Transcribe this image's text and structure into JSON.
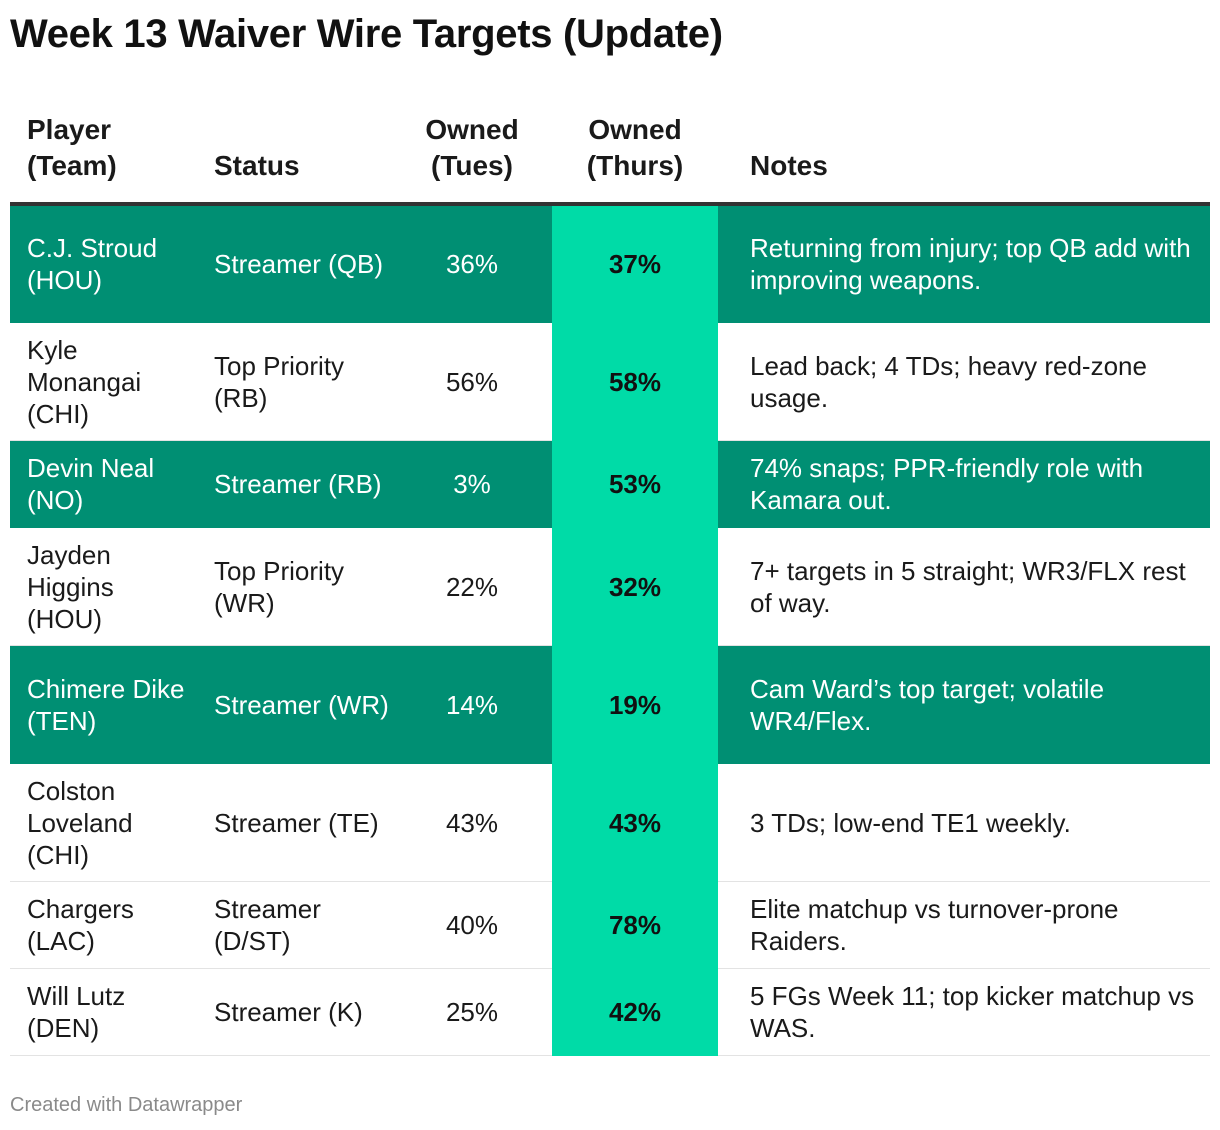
{
  "title": "Week 13 Waiver Wire Targets (Update)",
  "footer": "Created with Datawrapper",
  "colors": {
    "highlight_row": "#008f73",
    "thurs_column": "#00dba7",
    "header_rule": "#333333"
  },
  "columns": {
    "player": "Player (Team)",
    "status": "Status",
    "tues": "Owned (Tues)",
    "thurs": "Owned (Thurs)",
    "notes": "Notes"
  },
  "chart_data": {
    "type": "table",
    "title": "Week 13 Waiver Wire Targets (Update)",
    "columns": [
      "Player (Team)",
      "Status",
      "Owned (Tues)",
      "Owned (Thurs)",
      "Notes"
    ],
    "rows": [
      {
        "player": "C.J. Stroud (HOU)",
        "status": "Streamer (QB)",
        "tues": "36%",
        "thurs": "37%",
        "notes": "Returning from injury; top QB add with improving weapons.",
        "highlight": true
      },
      {
        "player": "Kyle Monangai (CHI)",
        "status": "Top Priority (RB)",
        "tues": "56%",
        "thurs": "58%",
        "notes": "Lead back; 4 TDs; heavy red-zone usage.",
        "highlight": false
      },
      {
        "player": "Devin Neal (NO)",
        "status": "Streamer (RB)",
        "tues": "3%",
        "thurs": "53%",
        "notes": "74% snaps; PPR-friendly role with Kamara out.",
        "highlight": true
      },
      {
        "player": "Jayden Higgins (HOU)",
        "status": "Top Priority (WR)",
        "tues": "22%",
        "thurs": "32%",
        "notes": "7+ targets in 5 straight; WR3/FLX rest of way.",
        "highlight": false
      },
      {
        "player": "Chimere Dike (TEN)",
        "status": "Streamer (WR)",
        "tues": "14%",
        "thurs": "19%",
        "notes": "Cam Ward’s top target; volatile WR4/Flex.",
        "highlight": true
      },
      {
        "player": "Colston Loveland (CHI)",
        "status": "Streamer (TE)",
        "tues": "43%",
        "thurs": "43%",
        "notes": "3 TDs; low-end TE1 weekly.",
        "highlight": false
      },
      {
        "player": "Chargers (LAC)",
        "status": "Streamer (D/ST)",
        "tues": "40%",
        "thurs": "78%",
        "notes": "Elite matchup vs turnover-prone Raiders.",
        "highlight": false
      },
      {
        "player": "Will Lutz (DEN)",
        "status": "Streamer (K)",
        "tues": "25%",
        "thurs": "42%",
        "notes": "5 FGs Week 11; top kicker matchup vs WAS.",
        "highlight": false
      }
    ]
  }
}
